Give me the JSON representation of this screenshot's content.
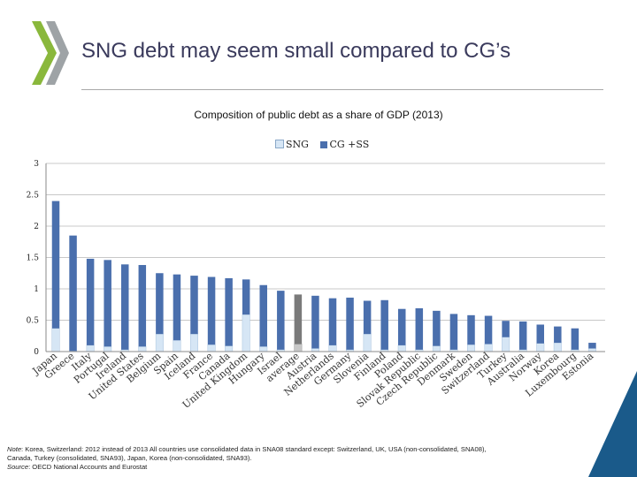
{
  "slide": {
    "title": "SNG debt may seem small compared to CG’s"
  },
  "notes": {
    "line1_label": "Note",
    "line1": ": Korea, Switzerland: 2012 instead of 2013 All countries use consolidated data in SNA08 standard except: Switzerland, UK, USA (non-consolidated, SNA08),",
    "line2": "Canada, Turkey (consolidated, SNA93), Japan, Korea (non-consolidated, SNA93).",
    "line3_label": "Source",
    "line3": ": OECD National Accounts and Eurostat"
  },
  "colors": {
    "sng": "#d6e6f5",
    "cgss": "#4a6fad",
    "average": "#7a7a7a",
    "average_sng": "#c8c8c8",
    "accent_green": "#8ab83c",
    "corner": "#1a5a8a"
  },
  "chart_data": {
    "type": "bar",
    "stacked": true,
    "title": "Composition of public debt as a share of GDP (2013)",
    "legend": [
      "SNG",
      "CG +SS"
    ],
    "legend_position": "top",
    "ylim": [
      0,
      3
    ],
    "yticks": [
      "0",
      "0.5",
      "1",
      "1.5",
      "2",
      "2.5",
      "3"
    ],
    "categories": [
      "Japan",
      "Greece",
      "Italy",
      "Portugal",
      "Ireland",
      "United States",
      "Belgium",
      "Spain",
      "Iceland",
      "France",
      "Canada",
      "United Kingdom",
      "Hungary",
      "Israel",
      "average",
      "Austria",
      "Netherlands",
      "Germany",
      "Slovenia",
      "Finland",
      "Poland",
      "Slovak Republic",
      "Czech Republic",
      "Denmark",
      "Sweden",
      "Switzerland",
      "Turkey",
      "Australia",
      "Norway",
      "Korea",
      "Luxembourg",
      "Estonia"
    ],
    "series": [
      {
        "name": "SNG",
        "values": [
          0.37,
          0.01,
          0.1,
          0.08,
          0.03,
          0.08,
          0.28,
          0.18,
          0.28,
          0.11,
          0.09,
          0.59,
          0.08,
          0.03,
          0.12,
          0.05,
          0.1,
          0.03,
          0.28,
          0.03,
          0.1,
          0.03,
          0.09,
          0.03,
          0.11,
          0.12,
          0.23,
          0.03,
          0.13,
          0.14,
          0.03,
          0.05
        ]
      },
      {
        "name": "CG +SS",
        "values": [
          2.03,
          1.84,
          1.38,
          1.38,
          1.36,
          1.3,
          0.97,
          1.05,
          0.93,
          1.08,
          1.08,
          0.56,
          0.98,
          0.94,
          0.79,
          0.84,
          0.75,
          0.83,
          0.53,
          0.79,
          0.58,
          0.66,
          0.56,
          0.57,
          0.47,
          0.45,
          0.26,
          0.45,
          0.3,
          0.26,
          0.34,
          0.09
        ]
      }
    ],
    "highlight": "average"
  }
}
